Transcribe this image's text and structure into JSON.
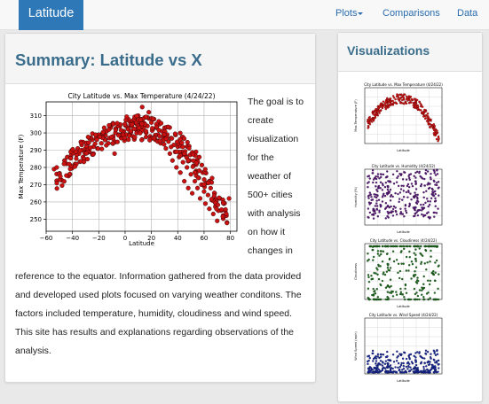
{
  "navbar": {
    "brand": "Latitude",
    "links": [
      "Plots",
      "Comparisons",
      "Data"
    ]
  },
  "main": {
    "title": "Summary: Latitude vs X",
    "text_side": [
      "The goal is to",
      "create",
      "visualization",
      "for the",
      "weather of",
      "500+ cities",
      "with analysis",
      "on how it",
      "changes in"
    ],
    "text_full": [
      "reference to the equator. Information gathered from the data provided",
      "and developed used plots focused on varying weather conditons. The",
      "factors included temperature, humidity, cloudiness and wind speed.",
      "This site has results and explanations regarding observations of the",
      "analysis."
    ]
  },
  "sidebar": {
    "title": "Visualizations"
  },
  "colors": {
    "brand": "#2f78b8",
    "link": "#2a6db0",
    "heading": "#3a6d8c",
    "temp": "#cc1111",
    "humidity": "#5a1a7a",
    "cloudiness": "#1f6b1f",
    "wind": "#1a2a99"
  },
  "chart_data": [
    {
      "type": "scatter",
      "title": "City Latitude vs. Max Temperature (4/24/22)",
      "xlabel": "Latitude",
      "ylabel": "Max Temperature (F)",
      "xlim": [
        -60,
        85
      ],
      "ylim": [
        243,
        318
      ],
      "xticks": [
        -60,
        -40,
        -20,
        0,
        20,
        40,
        60,
        80
      ],
      "yticks": [
        250,
        260,
        270,
        280,
        290,
        300,
        310
      ],
      "grid": true,
      "points": [
        [
          -54,
          279
        ],
        [
          -52,
          280
        ],
        [
          -46,
          284
        ],
        [
          -44,
          286
        ],
        [
          -43,
          275
        ],
        [
          -41,
          287
        ],
        [
          -38,
          282
        ],
        [
          -36,
          291
        ],
        [
          -35,
          288
        ],
        [
          -33,
          293
        ],
        [
          -32,
          286
        ],
        [
          -30,
          290
        ],
        [
          -28,
          294
        ],
        [
          -27,
          289
        ],
        [
          -25,
          296
        ],
        [
          -24,
          292
        ],
        [
          -22,
          297
        ],
        [
          -21,
          291
        ],
        [
          -20,
          299
        ],
        [
          -18,
          294
        ],
        [
          -17,
          300
        ],
        [
          -15,
          296
        ],
        [
          -14,
          301
        ],
        [
          -12,
          297
        ],
        [
          -11,
          303
        ],
        [
          -9,
          298
        ],
        [
          -8,
          288
        ],
        [
          -7,
          302
        ],
        [
          -5,
          299
        ],
        [
          -4,
          304
        ],
        [
          -3,
          297
        ],
        [
          -1,
          301
        ],
        [
          0,
          305
        ],
        [
          1,
          299
        ],
        [
          2,
          303
        ],
        [
          3,
          307
        ],
        [
          4,
          300
        ],
        [
          5,
          304
        ],
        [
          6,
          298
        ],
        [
          7,
          308
        ],
        [
          8,
          302
        ],
        [
          9,
          305
        ],
        [
          10,
          310
        ],
        [
          11,
          301
        ],
        [
          12,
          306
        ],
        [
          13,
          315
        ],
        [
          14,
          303
        ],
        [
          15,
          309
        ],
        [
          16,
          300
        ],
        [
          17,
          304
        ],
        [
          18,
          312
        ],
        [
          19,
          298
        ],
        [
          20,
          306
        ],
        [
          21,
          302
        ],
        [
          22,
          308
        ],
        [
          23,
          296
        ],
        [
          24,
          303
        ],
        [
          25,
          299
        ],
        [
          26,
          305
        ],
        [
          27,
          294
        ],
        [
          28,
          301
        ],
        [
          29,
          297
        ],
        [
          30,
          303
        ],
        [
          31,
          291
        ],
        [
          32,
          299
        ],
        [
          33,
          295
        ],
        [
          34,
          288
        ],
        [
          35,
          297
        ],
        [
          36,
          284
        ],
        [
          37,
          293
        ],
        [
          38,
          289
        ],
        [
          39,
          280
        ],
        [
          40,
          292
        ],
        [
          41,
          286
        ],
        [
          42,
          277
        ],
        [
          43,
          289
        ],
        [
          44,
          283
        ],
        [
          45,
          272
        ],
        [
          46,
          287
        ],
        [
          47,
          280
        ],
        [
          48,
          268
        ],
        [
          49,
          284
        ],
        [
          50,
          276
        ],
        [
          51,
          265
        ],
        [
          52,
          281
        ],
        [
          53,
          272
        ],
        [
          54,
          278
        ],
        [
          55,
          268
        ],
        [
          56,
          274
        ],
        [
          57,
          262
        ],
        [
          58,
          270
        ],
        [
          59,
          277
        ],
        [
          60,
          266
        ],
        [
          61,
          259
        ],
        [
          62,
          271
        ],
        [
          63,
          264
        ],
        [
          64,
          256
        ],
        [
          65,
          268
        ],
        [
          66,
          261
        ],
        [
          67,
          253
        ],
        [
          68,
          265
        ],
        [
          69,
          258
        ],
        [
          70,
          249
        ],
        [
          72,
          262
        ],
        [
          73,
          255
        ],
        [
          75,
          259
        ],
        [
          77,
          252
        ],
        [
          79,
          262
        ]
      ]
    },
    {
      "type": "scatter",
      "title": "City Latitude vs. Max Temperature (4/24/22)",
      "xlabel": "Latitude",
      "ylabel": "Max Temperature (F)",
      "xlim": [
        -60,
        85
      ],
      "ylim": [
        243,
        318
      ],
      "grid": true
    },
    {
      "type": "scatter",
      "title": "City Latitude vs. Humidity (4/24/22)",
      "xlabel": "Latitude",
      "ylabel": "Humidity (%)",
      "xlim": [
        -60,
        85
      ],
      "ylim": [
        0,
        105
      ],
      "grid": true
    },
    {
      "type": "scatter",
      "title": "City Latitude vs. Cloudiness (4/24/22)",
      "xlabel": "Latitude",
      "ylabel": "Cloudiness",
      "xlim": [
        -60,
        85
      ],
      "ylim": [
        0,
        105
      ],
      "grid": true
    },
    {
      "type": "scatter",
      "title": "City Latitude vs. Wind Speed (4/24/22)",
      "xlabel": "Latitude",
      "ylabel": "Wind Speed (mph)",
      "xlim": [
        -60,
        85
      ],
      "ylim": [
        0,
        40
      ],
      "grid": true
    }
  ]
}
